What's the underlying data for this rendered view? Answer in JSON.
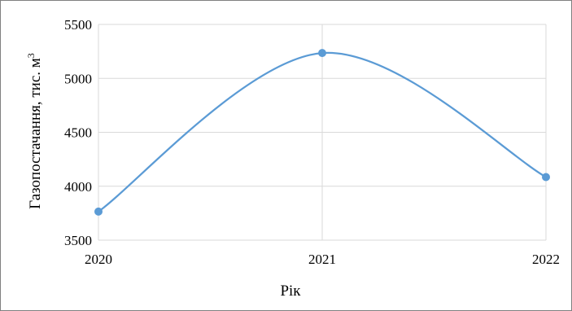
{
  "chart_data": {
    "type": "line",
    "smooth": true,
    "x": [
      "2020",
      "2021",
      "2022"
    ],
    "series": [
      {
        "values": [
          3765,
          5235,
          4085
        ],
        "color": "#5b9bd5",
        "marker": "circle"
      }
    ],
    "xlabel": "Рік",
    "ylabel": {
      "text": "Газопостачання, тис. м",
      "superscript": "3"
    },
    "ylim": [
      3500,
      5500
    ],
    "yticks": [
      "3500",
      "4000",
      "4500",
      "5000",
      "5500"
    ],
    "grid": {
      "x": true,
      "y": true
    },
    "gridColor": "#d9d9d9",
    "legend": "none"
  }
}
